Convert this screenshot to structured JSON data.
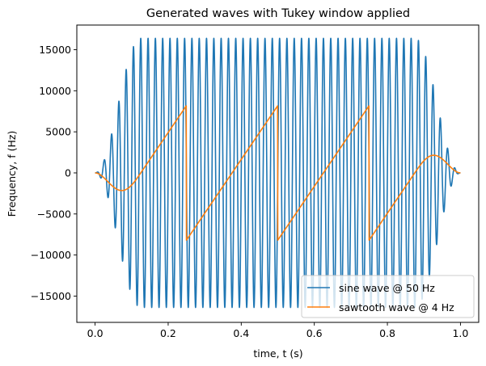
{
  "chart_data": {
    "type": "line",
    "title": "Generated waves with Tukey window applied",
    "xlabel": "time, t (s)",
    "ylabel": "Frequency, f (Hz)",
    "xlim": [
      -0.05,
      1.05
    ],
    "ylim": [
      -18200,
      18000
    ],
    "xticks": [
      0.0,
      0.2,
      0.4,
      0.6,
      0.8,
      1.0
    ],
    "xtick_labels": [
      "0.0",
      "0.2",
      "0.4",
      "0.6",
      "0.8",
      "1.0"
    ],
    "yticks": [
      -15000,
      -10000,
      -5000,
      0,
      5000,
      10000,
      15000
    ],
    "ytick_labels": [
      "−15000",
      "−10000",
      "−5000",
      "0",
      "5000",
      "10000",
      "15000"
    ],
    "grid": false,
    "legend_position": "lower-right",
    "window": {
      "type": "tukey",
      "alpha": 0.25
    },
    "series": [
      {
        "name": "sine wave @ 50 Hz",
        "color": "#1f77b4",
        "function": "sine",
        "frequency_hz": 50,
        "amplitude": 16384,
        "t_range": [
          0,
          1
        ]
      },
      {
        "name": "sawtooth wave @ 4 Hz",
        "color": "#ff7f0e",
        "function": "sawtooth",
        "frequency_hz": 4,
        "amplitude": 8192,
        "t_range": [
          0,
          1
        ]
      }
    ]
  }
}
